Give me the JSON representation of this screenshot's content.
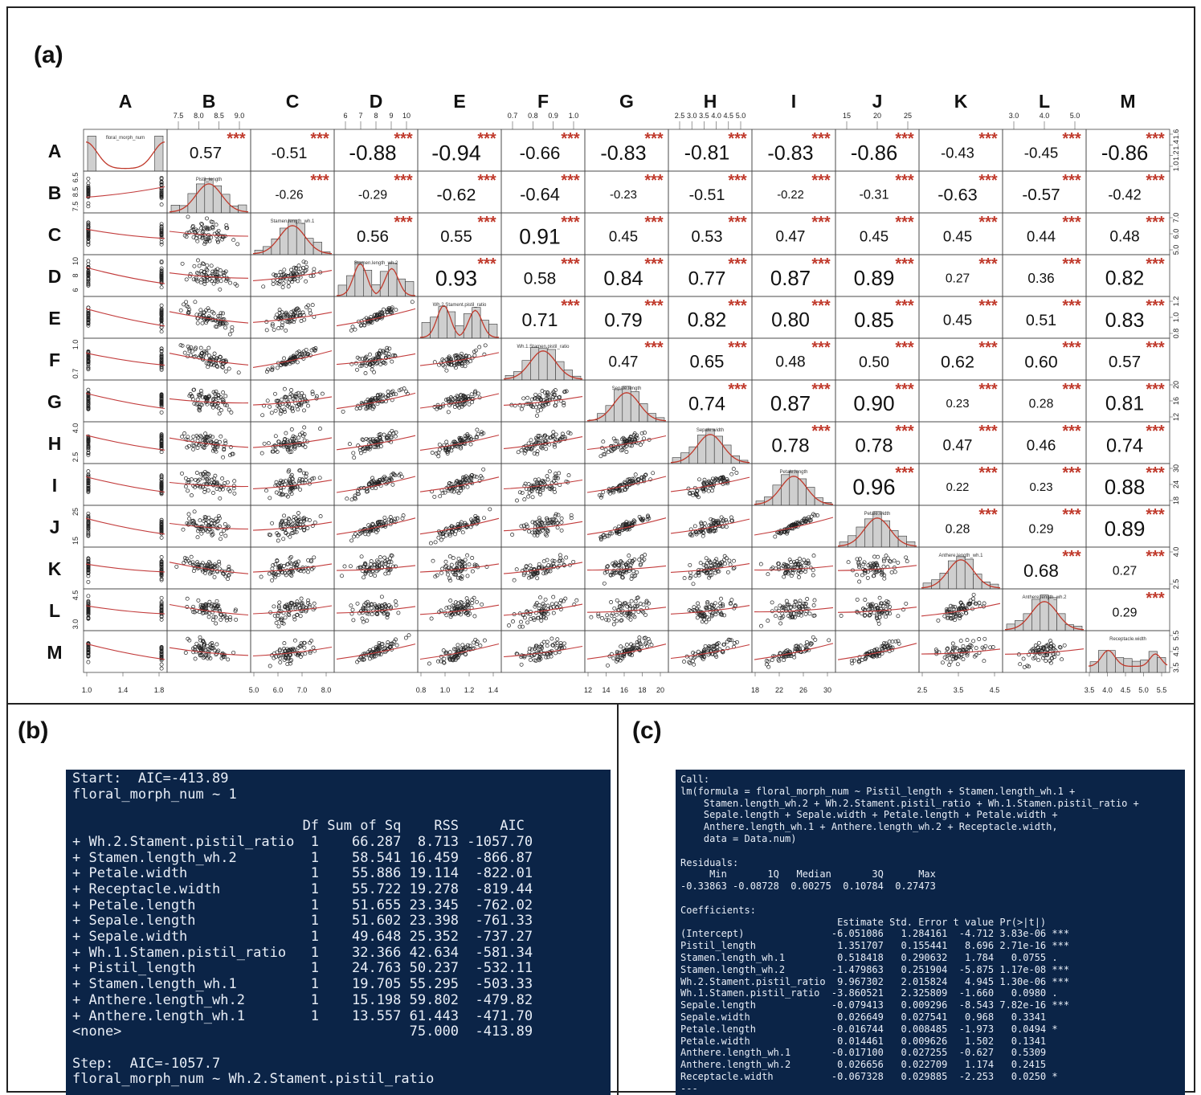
{
  "panel_labels": {
    "a": "(a)",
    "b": "(b)",
    "c": "(c)"
  },
  "chart_data": {
    "type": "scatter",
    "variables": [
      "A",
      "B",
      "C",
      "D",
      "E",
      "F",
      "G",
      "H",
      "I",
      "J",
      "K",
      "L",
      "M"
    ],
    "diagonal_labels": [
      "floral_morph_num",
      "Pistil_length",
      "Stamen.length_wh.1",
      "Stamen.length_wh.2",
      "Wh.2.Stament.pistil_ratio",
      "Wh.1.Stamen.pistil_ratio",
      "Sepale.length",
      "Sepale.width",
      "Petale.length",
      "Petale.width",
      "Anthere.length_wh.1",
      "Anthere.length_wh.2",
      "Receptacle.width"
    ],
    "significance": "***",
    "correlations": [
      [
        "",
        "0.57",
        "-0.51",
        "-0.88",
        "-0.94",
        "-0.66",
        "-0.83",
        "-0.81",
        "-0.83",
        "-0.86",
        "-0.43",
        "-0.45",
        "-0.86"
      ],
      [
        "",
        "",
        "-0.26",
        "-0.29",
        "-0.62",
        "-0.64",
        "-0.23",
        "-0.51",
        "-0.22",
        "-0.31",
        "-0.63",
        "-0.57",
        "-0.42"
      ],
      [
        "",
        "",
        "",
        "0.56",
        "0.55",
        "0.91",
        "0.45",
        "0.53",
        "0.47",
        "0.45",
        "0.45",
        "0.44",
        "0.48"
      ],
      [
        "",
        "",
        "",
        "",
        "0.93",
        "0.58",
        "0.84",
        "0.77",
        "0.87",
        "0.89",
        "0.27",
        "0.36",
        "0.82"
      ],
      [
        "",
        "",
        "",
        "",
        "",
        "0.71",
        "0.79",
        "0.82",
        "0.80",
        "0.85",
        "0.45",
        "0.51",
        "0.83"
      ],
      [
        "",
        "",
        "",
        "",
        "",
        "",
        "0.47",
        "0.65",
        "0.48",
        "0.50",
        "0.62",
        "0.60",
        "0.57"
      ],
      [
        "",
        "",
        "",
        "",
        "",
        "",
        "",
        "0.74",
        "0.87",
        "0.90",
        "0.23",
        "0.28",
        "0.81"
      ],
      [
        "",
        "",
        "",
        "",
        "",
        "",
        "",
        "",
        "0.78",
        "0.78",
        "0.47",
        "0.46",
        "0.74"
      ],
      [
        "",
        "",
        "",
        "",
        "",
        "",
        "",
        "",
        "",
        "0.96",
        "0.22",
        "0.23",
        "0.88"
      ],
      [
        "",
        "",
        "",
        "",
        "",
        "",
        "",
        "",
        "",
        "",
        "0.28",
        "0.29",
        "0.89"
      ],
      [
        "",
        "",
        "",
        "",
        "",
        "",
        "",
        "",
        "",
        "",
        "",
        "0.68",
        "0.27"
      ],
      [
        "",
        "",
        "",
        "",
        "",
        "",
        "",
        "",
        "",
        "",
        "",
        "",
        "0.29"
      ],
      [
        "",
        "",
        "",
        "",
        "",
        "",
        "",
        "",
        "",
        "",
        "",
        "",
        ""
      ]
    ],
    "stars": [
      [
        0,
        1,
        1,
        1,
        1,
        1,
        1,
        1,
        1,
        1,
        1,
        1,
        1
      ],
      [
        0,
        0,
        1,
        1,
        1,
        1,
        1,
        1,
        1,
        1,
        1,
        1,
        1
      ],
      [
        0,
        0,
        0,
        1,
        1,
        1,
        1,
        1,
        1,
        1,
        1,
        1,
        1
      ],
      [
        0,
        0,
        0,
        0,
        1,
        1,
        1,
        1,
        1,
        1,
        1,
        1,
        1
      ],
      [
        0,
        0,
        0,
        0,
        0,
        1,
        1,
        1,
        1,
        1,
        1,
        1,
        1
      ],
      [
        0,
        0,
        0,
        0,
        0,
        0,
        1,
        1,
        1,
        1,
        1,
        1,
        1
      ],
      [
        0,
        0,
        0,
        0,
        0,
        0,
        0,
        1,
        1,
        1,
        1,
        1,
        1
      ],
      [
        0,
        0,
        0,
        0,
        0,
        0,
        0,
        0,
        1,
        1,
        1,
        1,
        1
      ],
      [
        0,
        0,
        0,
        0,
        0,
        0,
        0,
        0,
        0,
        1,
        1,
        1,
        1
      ],
      [
        0,
        0,
        0,
        0,
        0,
        0,
        0,
        0,
        0,
        0,
        1,
        1,
        1
      ],
      [
        0,
        0,
        0,
        0,
        0,
        0,
        0,
        0,
        0,
        0,
        0,
        1,
        1
      ],
      [
        0,
        0,
        0,
        0,
        0,
        0,
        0,
        0,
        0,
        0,
        0,
        0,
        1
      ],
      [
        0,
        0,
        0,
        0,
        0,
        0,
        0,
        0,
        0,
        0,
        0,
        0,
        0
      ]
    ],
    "top_ticks": {
      "B": [
        "7.5",
        "8.0",
        "8.5",
        "9.0"
      ],
      "D": [
        "6",
        "7",
        "8",
        "9",
        "10"
      ],
      "F": [
        "0.7",
        "0.8",
        "0.9",
        "1.0"
      ],
      "H": [
        "2.5",
        "3.0",
        "3.5",
        "4.0",
        "4.5",
        "5.0"
      ],
      "J": [
        "15",
        "20",
        "25"
      ],
      "L": [
        "3.0",
        "4.0",
        "5.0"
      ]
    },
    "bottom_ticks": {
      "A": [
        "1.0",
        "1.4",
        "1.8"
      ],
      "C": [
        "5.0",
        "6.0",
        "7.0",
        "8.0"
      ],
      "E": [
        "0.8",
        "1.0",
        "1.2",
        "1.4"
      ],
      "G": [
        "12",
        "14",
        "16",
        "18",
        "20"
      ],
      "I": [
        "18",
        "22",
        "26",
        "30"
      ],
      "K": [
        "2.5",
        "3.5",
        "4.5"
      ],
      "M": [
        "3.5",
        "4.0",
        "4.5",
        "5.0",
        "5.5"
      ]
    },
    "left_ticks": {
      "B": [
        "6.5",
        "8.5",
        "7.5"
      ],
      "D": [
        "10",
        "8",
        "6"
      ],
      "F": [
        "1.0",
        "0.7"
      ],
      "H": [
        "4.0",
        "2.5"
      ],
      "J": [
        "25",
        "15"
      ],
      "L": [
        "4.5",
        "3.0"
      ]
    },
    "right_ticks": {
      "A": [
        "1.6",
        "1.4",
        "1.2",
        "1.0"
      ],
      "C": [
        "7.0",
        "6.0",
        "5.0"
      ],
      "E": [
        "1.2",
        "1.0",
        "0.8"
      ],
      "G": [
        "20",
        "16",
        "12"
      ],
      "I": [
        "30",
        "24",
        "18"
      ],
      "K": [
        "4.0",
        "2.5"
      ],
      "M": [
        "5.5",
        "4.5",
        "3.5"
      ]
    },
    "colors": {
      "stars": "#c0392b",
      "smooth": "#c23b3b",
      "hist": "#cfcfcf",
      "density": "#c0392b"
    }
  },
  "console_b": [
    "Start:  AIC=-413.89",
    "floral_morph_num ~ 1",
    "",
    "                            Df Sum of Sq    RSS     AIC",
    "+ Wh.2.Stament.pistil_ratio  1    66.287  8.713 -1057.70",
    "+ Stamen.length_wh.2         1    58.541 16.459  -866.87",
    "+ Petale.width               1    55.886 19.114  -822.01",
    "+ Receptacle.width           1    55.722 19.278  -819.44",
    "+ Petale.length              1    51.655 23.345  -762.02",
    "+ Sepale.length              1    51.602 23.398  -761.33",
    "+ Sepale.width               1    49.648 25.352  -737.27",
    "+ Wh.1.Stamen.pistil_ratio   1    32.366 42.634  -581.34",
    "+ Pistil_length              1    24.763 50.237  -532.11",
    "+ Stamen.length_wh.1         1    19.705 55.295  -503.33",
    "+ Anthere.length_wh.2        1    15.198 59.802  -479.82",
    "+ Anthere.length_wh.1        1    13.557 61.443  -471.70",
    "<none>                                   75.000  -413.89",
    "",
    "Step:  AIC=-1057.7",
    "floral_morph_num ~ Wh.2.Stament.pistil_ratio"
  ],
  "console_c": [
    "Call:",
    "lm(formula = floral_morph_num ~ Pistil_length + Stamen.length_wh.1 +",
    "    Stamen.length_wh.2 + Wh.2.Stament.pistil_ratio + Wh.1.Stamen.pistil_ratio +",
    "    Sepale.length + Sepale.width + Petale.length + Petale.width +",
    "    Anthere.length_wh.1 + Anthere.length_wh.2 + Receptacle.width,",
    "    data = Data.num)",
    "",
    "Residuals:",
    "     Min       1Q   Median       3Q      Max",
    "-0.33863 -0.08728  0.00275  0.10784  0.27473",
    "",
    "Coefficients:",
    "                           Estimate Std. Error t value Pr(>|t|)",
    "(Intercept)               -6.051086   1.284161  -4.712 3.83e-06 ***",
    "Pistil_length              1.351707   0.155441   8.696 2.71e-16 ***",
    "Stamen.length_wh.1         0.518418   0.290632   1.784   0.0755 .",
    "Stamen.length_wh.2        -1.479863   0.251904  -5.875 1.17e-08 ***",
    "Wh.2.Stament.pistil_ratio  9.967302   2.015824   4.945 1.30e-06 ***",
    "Wh.1.Stamen.pistil_ratio  -3.860521   2.325809  -1.660   0.0980 .",
    "Sepale.length             -0.079413   0.009296  -8.543 7.82e-16 ***",
    "Sepale.width               0.026649   0.027541   0.968   0.3341",
    "Petale.length             -0.016744   0.008485  -1.973   0.0494 *",
    "Petale.width               0.014461   0.009626   1.502   0.1341",
    "Anthere.length_wh.1       -0.017100   0.027255  -0.627   0.5309",
    "Anthere.length_wh.2        0.026656   0.022709   1.174   0.2415",
    "Receptacle.width          -0.067328   0.029885  -2.253   0.0250 *",
    "---"
  ]
}
